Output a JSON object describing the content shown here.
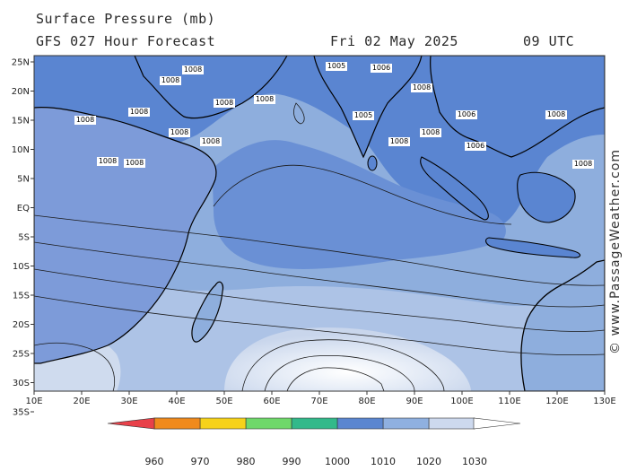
{
  "header": {
    "title": "Surface Pressure (mb)",
    "forecast": "GFS 027 Hour Forecast",
    "date": "Fri 02 May 2025",
    "time": "09 UTC"
  },
  "credit": "© www.PassageWeather.com",
  "axes": {
    "lat_labels": [
      "25N",
      "20N",
      "15N",
      "10N",
      "5N",
      "EQ",
      "5S",
      "10S",
      "15S",
      "20S",
      "25S",
      "30S",
      "35S"
    ],
    "lon_labels": [
      "10E",
      "20E",
      "30E",
      "40E",
      "50E",
      "60E",
      "70E",
      "80E",
      "90E",
      "100E",
      "110E",
      "120E",
      "130E"
    ]
  },
  "colorbar": {
    "labels": [
      "960",
      "970",
      "980",
      "990",
      "1000",
      "1010",
      "1020",
      "1030"
    ],
    "colors": [
      "#e8414a",
      "#f08a1c",
      "#f6d21a",
      "#6fd86a",
      "#32b98a",
      "#5b86d0",
      "#8fb0e0",
      "#cdd9ee"
    ]
  },
  "map_colors": {
    "low": "#5a85d1",
    "mid": "#8eaedd",
    "high": "#c9d6ec",
    "highest": "#eef2f9",
    "land_low": "#6d90d6"
  },
  "pressure_labels": [
    "1008",
    "1008",
    "1008",
    "1008",
    "1008",
    "1008",
    "1008",
    "1008",
    "1008",
    "1008",
    "1005",
    "1006",
    "1008",
    "1008",
    "1005",
    "1006",
    "1008",
    "1006",
    "1008",
    "1008"
  ]
}
